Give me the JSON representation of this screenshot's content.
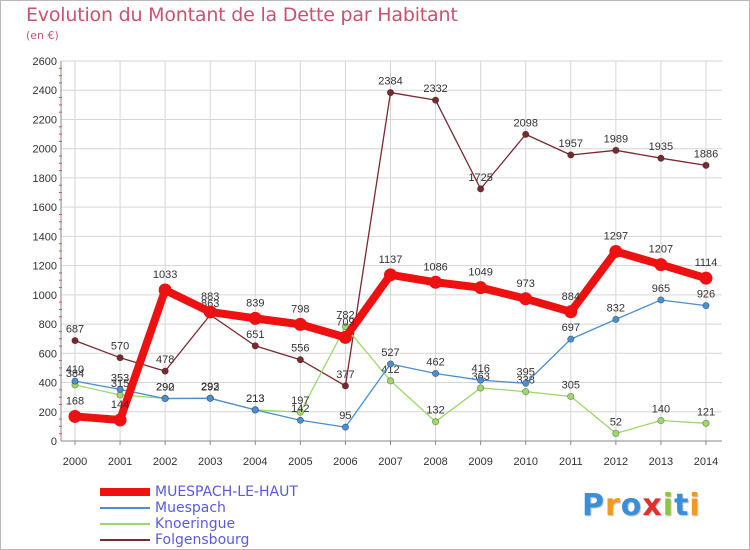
{
  "chart_data": {
    "type": "line",
    "title": "Evolution du Montant de la Dette par Habitant",
    "subtitle": "(en €)",
    "x": [
      "2000",
      "2001",
      "2002",
      "2003",
      "2004",
      "2005",
      "2006",
      "2007",
      "2008",
      "2009",
      "2010",
      "2011",
      "2012",
      "2013",
      "2014"
    ],
    "ylim": [
      0,
      2600
    ],
    "yticks": [
      "0",
      "200",
      "400",
      "600",
      "800",
      "1000",
      "1200",
      "1400",
      "1600",
      "1800",
      "2000",
      "2200",
      "2400",
      "2600"
    ],
    "grid": true,
    "legend": "bottom-left",
    "series": [
      {
        "name": "MUESPACH-LE-HAUT",
        "color": "#ee1111",
        "values": [
          168,
          144,
          1033,
          883,
          839,
          798,
          709,
          1137,
          1086,
          1049,
          973,
          884,
          1297,
          1207,
          1114
        ]
      },
      {
        "name": "Muespach",
        "color": "#4a8fd0",
        "values": [
          410,
          353,
          290,
          292,
          213,
          142,
          95,
          527,
          462,
          416,
          395,
          697,
          832,
          965,
          926
        ]
      },
      {
        "name": "Knoeringue",
        "color": "#9ed86a",
        "values": [
          384,
          315,
          292,
          293,
          213,
          197,
          782,
          412,
          132,
          363,
          338,
          305,
          52,
          140,
          121
        ]
      },
      {
        "name": "Folgensbourg",
        "color": "#7a2a2e",
        "values": [
          687,
          570,
          478,
          863,
          651,
          556,
          377,
          2384,
          2332,
          1725,
          2098,
          1957,
          1989,
          1935,
          1886
        ]
      }
    ]
  },
  "logo": {
    "letters": [
      "P",
      "r",
      "o",
      "x",
      "i",
      "t",
      "i"
    ],
    "colors": [
      "#3b8fd6",
      "#f39a1e",
      "#3b8fd6",
      "#e2302e",
      "#8cc63f",
      "#3b8fd6",
      "#f39a1e"
    ]
  }
}
